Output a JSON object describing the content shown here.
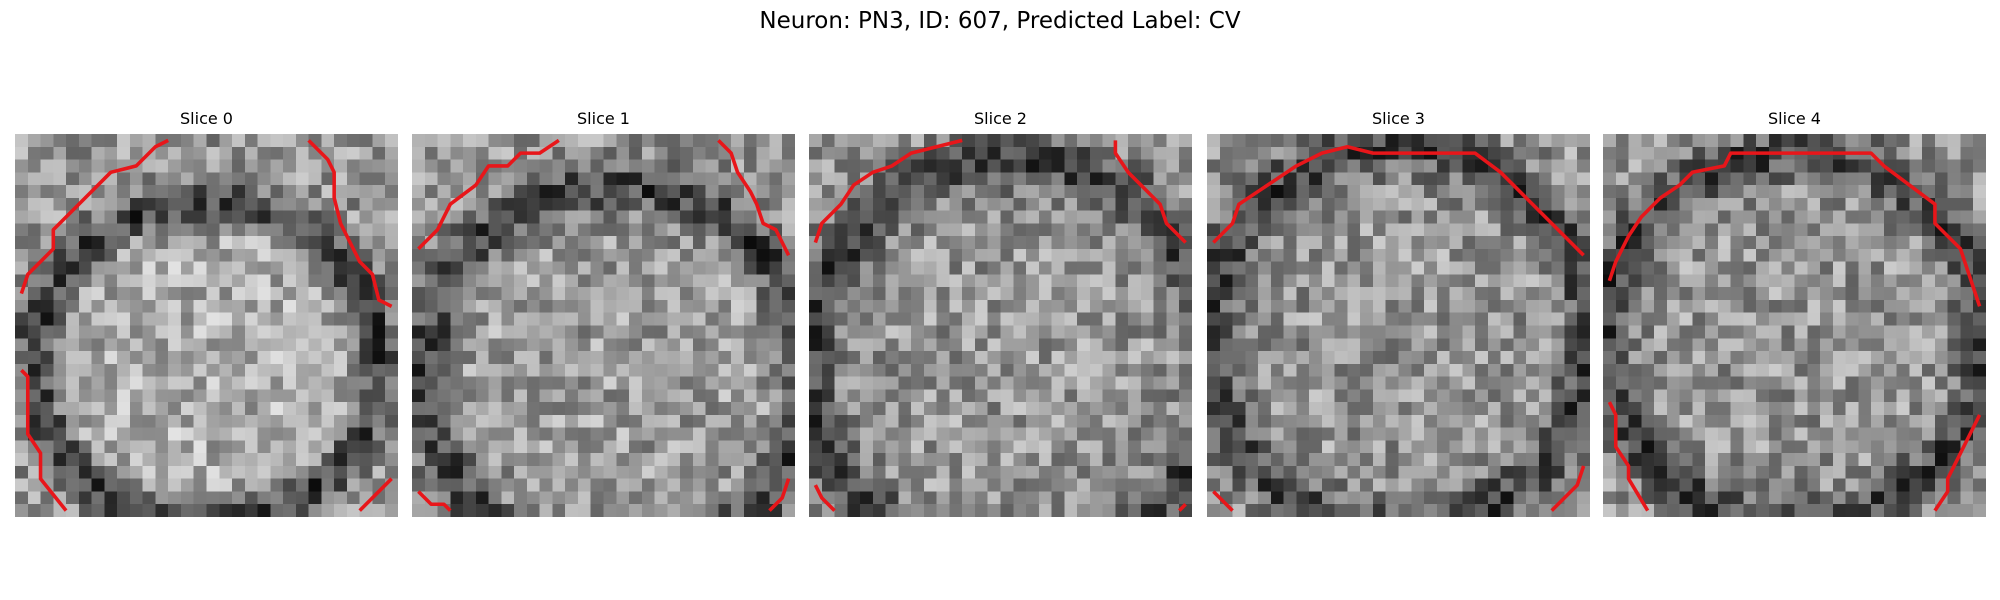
{
  "title": "Neuron: PN3, ID: 607, Predicted Label: CV",
  "panels": [
    {
      "title": "Slice 0"
    },
    {
      "title": "Slice 1"
    },
    {
      "title": "Slice 2"
    },
    {
      "title": "Slice 3"
    },
    {
      "title": "Slice 4"
    }
  ]
}
